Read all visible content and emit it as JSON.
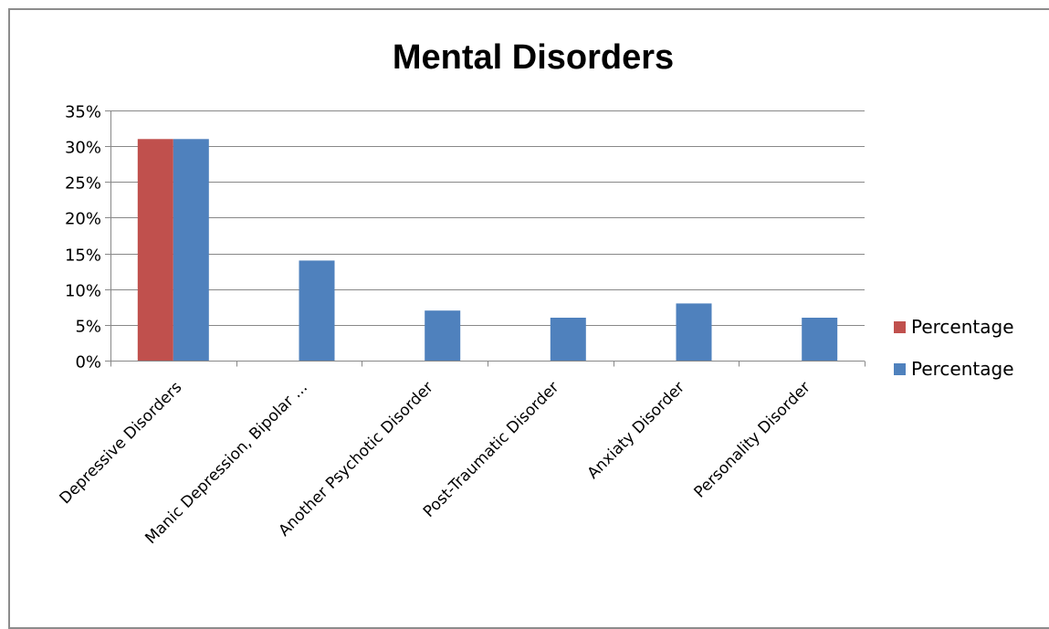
{
  "chart_data": {
    "type": "bar",
    "title": "Mental Disorders",
    "xlabel": "",
    "ylabel": "",
    "categories": [
      "Depressive Disorders",
      "Manic Depression, Bipolar ...",
      "Another Psychotic Disorder",
      "Post-Traumatic Disorder",
      "Anxiaty Disorder",
      "Personality Disorder"
    ],
    "series": [
      {
        "name": "Percentage",
        "color": "#c0504d",
        "values": [
          0.31,
          null,
          null,
          null,
          null,
          null
        ]
      },
      {
        "name": "Percentage",
        "color": "#4f81bd",
        "values": [
          0.31,
          0.14,
          0.07,
          0.06,
          0.08,
          0.06
        ]
      }
    ],
    "ylim": [
      0,
      0.35
    ],
    "yticks": [
      0,
      0.05,
      0.1,
      0.15,
      0.2,
      0.25,
      0.3,
      0.35
    ],
    "ytick_labels": [
      "0%",
      "5%",
      "10%",
      "15%",
      "20%",
      "25%",
      "30%",
      "35%"
    ],
    "grid": true,
    "legend_position": "right"
  }
}
